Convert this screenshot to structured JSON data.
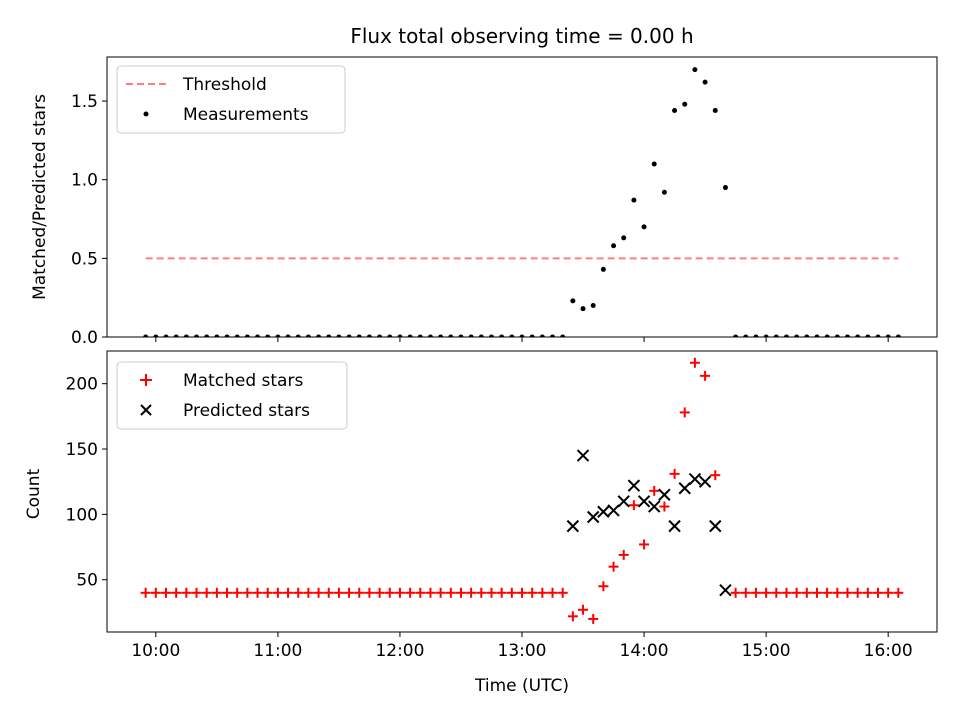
{
  "chart_data": [
    {
      "type": "scatter",
      "title": "Flux total observing time = 0.00 h",
      "ylabel": "Matched/Predicted stars",
      "xlabel": "",
      "xlim": [
        "09:36",
        "16:24"
      ],
      "ylim": [
        0,
        1.78
      ],
      "x_ticks": [
        "10:00",
        "11:00",
        "12:00",
        "13:00",
        "14:00",
        "15:00",
        "16:00"
      ],
      "y_ticks": [
        {
          "value": 0.0,
          "label": "0.0"
        },
        {
          "value": 0.5,
          "label": "0.5"
        },
        {
          "value": 1.0,
          "label": "1.0"
        },
        {
          "value": 1.5,
          "label": "1.5"
        }
      ],
      "legend_position": "top-left",
      "series": [
        {
          "name": "Threshold",
          "style": "dashed-line",
          "color": "#ff7f7f",
          "points": [
            [
              "09:55",
              0.5
            ],
            [
              "16:05",
              0.5
            ]
          ]
        },
        {
          "name": "Measurements",
          "style": "dot",
          "color": "#000000",
          "points": [
            [
              "09:55",
              0.0
            ],
            [
              "10:00",
              0.0
            ],
            [
              "10:05",
              0.0
            ],
            [
              "10:10",
              0.0
            ],
            [
              "10:15",
              0.0
            ],
            [
              "10:20",
              0.0
            ],
            [
              "10:25",
              0.0
            ],
            [
              "10:30",
              0.0
            ],
            [
              "10:35",
              0.0
            ],
            [
              "10:40",
              0.0
            ],
            [
              "10:45",
              0.0
            ],
            [
              "10:50",
              0.0
            ],
            [
              "10:55",
              0.0
            ],
            [
              "11:00",
              0.0
            ],
            [
              "11:05",
              0.0
            ],
            [
              "11:10",
              0.0
            ],
            [
              "11:15",
              0.0
            ],
            [
              "11:20",
              0.0
            ],
            [
              "11:25",
              0.0
            ],
            [
              "11:30",
              0.0
            ],
            [
              "11:35",
              0.0
            ],
            [
              "11:40",
              0.0
            ],
            [
              "11:45",
              0.0
            ],
            [
              "11:50",
              0.0
            ],
            [
              "11:55",
              0.0
            ],
            [
              "12:00",
              0.0
            ],
            [
              "12:05",
              0.0
            ],
            [
              "12:10",
              0.0
            ],
            [
              "12:15",
              0.0
            ],
            [
              "12:20",
              0.0
            ],
            [
              "12:25",
              0.0
            ],
            [
              "12:30",
              0.0
            ],
            [
              "12:35",
              0.0
            ],
            [
              "12:40",
              0.0
            ],
            [
              "12:45",
              0.0
            ],
            [
              "12:50",
              0.0
            ],
            [
              "12:55",
              0.0
            ],
            [
              "13:00",
              0.0
            ],
            [
              "13:05",
              0.0
            ],
            [
              "13:10",
              0.0
            ],
            [
              "13:15",
              0.0
            ],
            [
              "13:20",
              0.0
            ],
            [
              "13:25",
              0.23
            ],
            [
              "13:30",
              0.18
            ],
            [
              "13:35",
              0.2
            ],
            [
              "13:40",
              0.43
            ],
            [
              "13:45",
              0.58
            ],
            [
              "13:50",
              0.63
            ],
            [
              "13:55",
              0.87
            ],
            [
              "14:00",
              0.7
            ],
            [
              "14:05",
              1.1
            ],
            [
              "14:10",
              0.92
            ],
            [
              "14:15",
              1.44
            ],
            [
              "14:20",
              1.48
            ],
            [
              "14:25",
              1.7
            ],
            [
              "14:30",
              1.62
            ],
            [
              "14:35",
              1.44
            ],
            [
              "14:40",
              0.95
            ],
            [
              "14:45",
              0.0
            ],
            [
              "14:50",
              0.0
            ],
            [
              "14:55",
              0.0
            ],
            [
              "15:00",
              0.0
            ],
            [
              "15:05",
              0.0
            ],
            [
              "15:10",
              0.0
            ],
            [
              "15:15",
              0.0
            ],
            [
              "15:20",
              0.0
            ],
            [
              "15:25",
              0.0
            ],
            [
              "15:30",
              0.0
            ],
            [
              "15:35",
              0.0
            ],
            [
              "15:40",
              0.0
            ],
            [
              "15:45",
              0.0
            ],
            [
              "15:50",
              0.0
            ],
            [
              "15:55",
              0.0
            ],
            [
              "16:00",
              0.0
            ],
            [
              "16:05",
              0.0
            ]
          ]
        }
      ]
    },
    {
      "type": "scatter",
      "title": "",
      "xlabel": "Time (UTC)",
      "ylabel": "Count",
      "xlim": [
        "09:36",
        "16:24"
      ],
      "ylim": [
        10,
        225
      ],
      "x_ticks": [
        "10:00",
        "11:00",
        "12:00",
        "13:00",
        "14:00",
        "15:00",
        "16:00"
      ],
      "y_ticks": [
        {
          "value": 50,
          "label": "50"
        },
        {
          "value": 100,
          "label": "100"
        },
        {
          "value": 150,
          "label": "150"
        },
        {
          "value": 200,
          "label": "200"
        }
      ],
      "legend_position": "top-left",
      "series": [
        {
          "name": "Matched stars",
          "style": "plus",
          "color": "#ff0000",
          "points": [
            [
              "09:55",
              40
            ],
            [
              "10:00",
              40
            ],
            [
              "10:05",
              40
            ],
            [
              "10:10",
              40
            ],
            [
              "10:15",
              40
            ],
            [
              "10:20",
              40
            ],
            [
              "10:25",
              40
            ],
            [
              "10:30",
              40
            ],
            [
              "10:35",
              40
            ],
            [
              "10:40",
              40
            ],
            [
              "10:45",
              40
            ],
            [
              "10:50",
              40
            ],
            [
              "10:55",
              40
            ],
            [
              "11:00",
              40
            ],
            [
              "11:05",
              40
            ],
            [
              "11:10",
              40
            ],
            [
              "11:15",
              40
            ],
            [
              "11:20",
              40
            ],
            [
              "11:25",
              40
            ],
            [
              "11:30",
              40
            ],
            [
              "11:35",
              40
            ],
            [
              "11:40",
              40
            ],
            [
              "11:45",
              40
            ],
            [
              "11:50",
              40
            ],
            [
              "11:55",
              40
            ],
            [
              "12:00",
              40
            ],
            [
              "12:05",
              40
            ],
            [
              "12:10",
              40
            ],
            [
              "12:15",
              40
            ],
            [
              "12:20",
              40
            ],
            [
              "12:25",
              40
            ],
            [
              "12:30",
              40
            ],
            [
              "12:35",
              40
            ],
            [
              "12:40",
              40
            ],
            [
              "12:45",
              40
            ],
            [
              "12:50",
              40
            ],
            [
              "12:55",
              40
            ],
            [
              "13:00",
              40
            ],
            [
              "13:05",
              40
            ],
            [
              "13:10",
              40
            ],
            [
              "13:15",
              40
            ],
            [
              "13:20",
              40
            ],
            [
              "13:25",
              22
            ],
            [
              "13:30",
              27
            ],
            [
              "13:35",
              20
            ],
            [
              "13:40",
              45
            ],
            [
              "13:45",
              60
            ],
            [
              "13:50",
              69
            ],
            [
              "13:55",
              107
            ],
            [
              "14:00",
              77
            ],
            [
              "14:05",
              118
            ],
            [
              "14:10",
              106
            ],
            [
              "14:15",
              131
            ],
            [
              "14:20",
              178
            ],
            [
              "14:25",
              216
            ],
            [
              "14:30",
              206
            ],
            [
              "14:35",
              130
            ],
            [
              "14:45",
              40
            ],
            [
              "14:50",
              40
            ],
            [
              "14:55",
              40
            ],
            [
              "15:00",
              40
            ],
            [
              "15:05",
              40
            ],
            [
              "15:10",
              40
            ],
            [
              "15:15",
              40
            ],
            [
              "15:20",
              40
            ],
            [
              "15:25",
              40
            ],
            [
              "15:30",
              40
            ],
            [
              "15:35",
              40
            ],
            [
              "15:40",
              40
            ],
            [
              "15:45",
              40
            ],
            [
              "15:50",
              40
            ],
            [
              "15:55",
              40
            ],
            [
              "16:00",
              40
            ],
            [
              "16:05",
              40
            ]
          ]
        },
        {
          "name": "Predicted stars",
          "style": "x",
          "color": "#000000",
          "points": [
            [
              "13:25",
              91
            ],
            [
              "13:30",
              145
            ],
            [
              "13:35",
              98
            ],
            [
              "13:40",
              102
            ],
            [
              "13:45",
              103
            ],
            [
              "13:50",
              110
            ],
            [
              "13:55",
              122
            ],
            [
              "14:00",
              110
            ],
            [
              "14:05",
              106
            ],
            [
              "14:10",
              115
            ],
            [
              "14:15",
              91
            ],
            [
              "14:20",
              120
            ],
            [
              "14:25",
              127
            ],
            [
              "14:30",
              125
            ],
            [
              "14:35",
              91
            ],
            [
              "14:40",
              42
            ]
          ]
        }
      ]
    }
  ]
}
